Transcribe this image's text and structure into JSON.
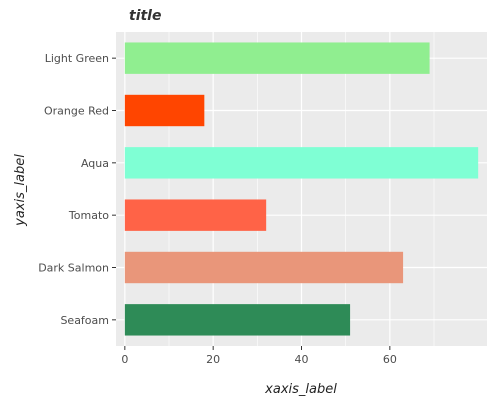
{
  "chart_data": {
    "type": "bar",
    "orientation": "horizontal",
    "title": "title",
    "xlabel": "xaxis_label",
    "ylabel": "yaxis_label",
    "categories": [
      "Seafoam",
      "Dark Salmon",
      "Tomato",
      "Aqua",
      "Orange Red",
      "Light Green"
    ],
    "values": [
      51,
      63,
      32,
      80,
      18,
      69
    ],
    "colors": [
      "#2e8b57",
      "#e9967a",
      "#ff6347",
      "#7fffd4",
      "#ff4500",
      "#90ee90"
    ],
    "x_ticks": [
      0,
      20,
      40,
      60
    ],
    "x_tick_labels": [
      "0",
      "20",
      "40",
      "60"
    ],
    "xlim": [
      -2,
      82
    ],
    "grid": true,
    "background": "#ebebeb"
  }
}
